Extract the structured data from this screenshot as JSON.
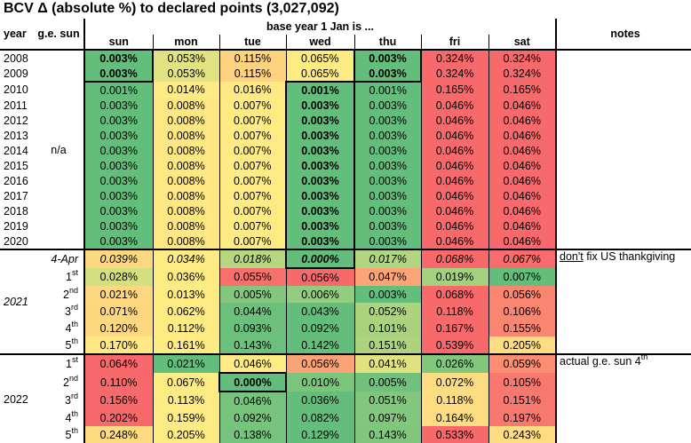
{
  "title": "BCV Δ (absolute %) to declared points (3,027,092)",
  "header": {
    "year": "year",
    "ge_sun": "g.e. sun",
    "base_year": "base year 1 Jan is ...",
    "notes": "notes",
    "days": [
      "sun",
      "mon",
      "tue",
      "wed",
      "thu",
      "fri",
      "sat"
    ]
  },
  "color_scale": {
    "min": "#63be7b",
    "mid": "#ffeb84",
    "max": "#f8696b",
    "scope": "per-row"
  },
  "groups": [
    {
      "year_label": "",
      "ge_label": "n/a",
      "italic_year": false,
      "rows": [
        {
          "year": "2008",
          "values": [
            "0.003%",
            "0.053%",
            "0.115%",
            "0.065%",
            "0.003%",
            "0.324%",
            "0.324%"
          ],
          "bold": [
            0,
            4
          ]
        },
        {
          "year": "2009",
          "values": [
            "0.003%",
            "0.053%",
            "0.115%",
            "0.065%",
            "0.003%",
            "0.324%",
            "0.324%"
          ],
          "bold": [
            0,
            4
          ]
        },
        {
          "year": "2010",
          "values": [
            "0.001%",
            "0.014%",
            "0.016%",
            "0.001%",
            "0.001%",
            "0.165%",
            "0.165%"
          ],
          "bold": [
            3
          ]
        },
        {
          "year": "2011",
          "values": [
            "0.003%",
            "0.008%",
            "0.007%",
            "0.003%",
            "0.003%",
            "0.046%",
            "0.046%"
          ],
          "bold": [
            3
          ]
        },
        {
          "year": "2012",
          "values": [
            "0.003%",
            "0.008%",
            "0.007%",
            "0.003%",
            "0.003%",
            "0.046%",
            "0.046%"
          ],
          "bold": [
            3
          ]
        },
        {
          "year": "2013",
          "values": [
            "0.003%",
            "0.008%",
            "0.007%",
            "0.003%",
            "0.003%",
            "0.046%",
            "0.046%"
          ],
          "bold": [
            3
          ]
        },
        {
          "year": "2014",
          "values": [
            "0.003%",
            "0.008%",
            "0.007%",
            "0.003%",
            "0.003%",
            "0.046%",
            "0.046%"
          ],
          "bold": [
            3
          ]
        },
        {
          "year": "2015",
          "values": [
            "0.003%",
            "0.008%",
            "0.007%",
            "0.003%",
            "0.003%",
            "0.046%",
            "0.046%"
          ],
          "bold": [
            3
          ]
        },
        {
          "year": "2016",
          "values": [
            "0.003%",
            "0.008%",
            "0.007%",
            "0.003%",
            "0.003%",
            "0.046%",
            "0.046%"
          ],
          "bold": [
            3
          ]
        },
        {
          "year": "2017",
          "values": [
            "0.003%",
            "0.008%",
            "0.007%",
            "0.003%",
            "0.003%",
            "0.046%",
            "0.046%"
          ],
          "bold": [
            3
          ]
        },
        {
          "year": "2018",
          "values": [
            "0.003%",
            "0.008%",
            "0.007%",
            "0.003%",
            "0.003%",
            "0.046%",
            "0.046%"
          ],
          "bold": [
            3
          ]
        },
        {
          "year": "2019",
          "values": [
            "0.003%",
            "0.008%",
            "0.007%",
            "0.003%",
            "0.003%",
            "0.046%",
            "0.046%"
          ],
          "bold": [
            3
          ]
        },
        {
          "year": "2020",
          "values": [
            "0.003%",
            "0.008%",
            "0.007%",
            "0.003%",
            "0.003%",
            "0.046%",
            "0.046%"
          ],
          "bold": [
            3
          ]
        }
      ],
      "note": null
    },
    {
      "year_label": "2021",
      "italic_year": true,
      "rows": [
        {
          "ge": "4-Apr",
          "italic": true,
          "values": [
            "0.039%",
            "0.034%",
            "0.018%",
            "0.000%",
            "0.017%",
            "0.068%",
            "0.067%"
          ],
          "bold": [
            3
          ]
        },
        {
          "ge": "1",
          "sup": "st",
          "values": [
            "0.028%",
            "0.036%",
            "0.055%",
            "0.056%",
            "0.047%",
            "0.019%",
            "0.007%"
          ],
          "bold": []
        },
        {
          "ge": "2",
          "sup": "nd",
          "values": [
            "0.021%",
            "0.013%",
            "0.005%",
            "0.006%",
            "0.003%",
            "0.068%",
            "0.056%"
          ],
          "bold": []
        },
        {
          "ge": "3",
          "sup": "rd",
          "values": [
            "0.071%",
            "0.062%",
            "0.044%",
            "0.043%",
            "0.052%",
            "0.118%",
            "0.106%"
          ],
          "bold": []
        },
        {
          "ge": "4",
          "sup": "th",
          "values": [
            "0.120%",
            "0.112%",
            "0.093%",
            "0.092%",
            "0.101%",
            "0.167%",
            "0.155%"
          ],
          "bold": []
        },
        {
          "ge": "5",
          "sup": "th",
          "values": [
            "0.170%",
            "0.161%",
            "0.143%",
            "0.142%",
            "0.151%",
            "0.539%",
            "0.205%"
          ],
          "bold": []
        }
      ],
      "note": {
        "underlined": "don't",
        "text": " fix US thankgiving",
        "sup": ""
      }
    },
    {
      "year_label": "2022",
      "italic_year": false,
      "rows": [
        {
          "ge": "1",
          "sup": "st",
          "values": [
            "0.064%",
            "0.021%",
            "0.046%",
            "0.056%",
            "0.041%",
            "0.026%",
            "0.059%"
          ],
          "bold": []
        },
        {
          "ge": "2",
          "sup": "nd",
          "values": [
            "0.110%",
            "0.067%",
            "0.000%",
            "0.010%",
            "0.005%",
            "0.072%",
            "0.105%"
          ],
          "bold": [
            2
          ]
        },
        {
          "ge": "3",
          "sup": "rd",
          "values": [
            "0.156%",
            "0.113%",
            "0.046%",
            "0.036%",
            "0.051%",
            "0.118%",
            "0.151%"
          ],
          "bold": []
        },
        {
          "ge": "4",
          "sup": "th",
          "values": [
            "0.202%",
            "0.159%",
            "0.092%",
            "0.082%",
            "0.097%",
            "0.164%",
            "0.197%"
          ],
          "bold": []
        },
        {
          "ge": "5",
          "sup": "th",
          "values": [
            "0.248%",
            "0.205%",
            "0.138%",
            "0.129%",
            "0.143%",
            "0.533%",
            "0.243%"
          ],
          "bold": []
        }
      ],
      "note": {
        "underlined": "",
        "text": "actual g.e. sun 4",
        "sup": "th"
      }
    }
  ]
}
